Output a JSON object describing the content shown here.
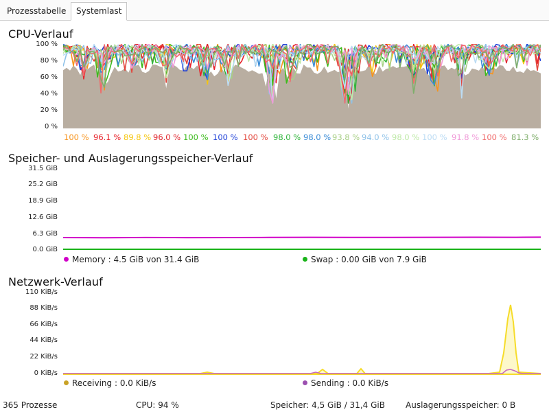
{
  "tabs": [
    {
      "label": "Prozesstabelle",
      "active": false
    },
    {
      "label": "Systemlast",
      "active": true
    }
  ],
  "cpu": {
    "title": "CPU-Verlauf",
    "y_ticks": [
      "100 %",
      "80 %",
      "60 %",
      "40 %",
      "20 %",
      "0 %"
    ],
    "fill_color": "#b9aea1",
    "cores": [
      {
        "value": "100 %",
        "color": "#f7941d"
      },
      {
        "value": "96.1 %",
        "color": "#e8222a"
      },
      {
        "value": "89.8 %",
        "color": "#f6c60f"
      },
      {
        "value": "96.0 %",
        "color": "#e0232b"
      },
      {
        "value": "100 %",
        "color": "#3dbb1d"
      },
      {
        "value": "100 %",
        "color": "#1e40d8"
      },
      {
        "value": "100 %",
        "color": "#e2463c"
      },
      {
        "value": "98.0 %",
        "color": "#2fb53a"
      },
      {
        "value": "98.0 %",
        "color": "#3b8cd6"
      },
      {
        "value": "93.8 %",
        "color": "#a8cf86"
      },
      {
        "value": "94.0 %",
        "color": "#8fc2e8"
      },
      {
        "value": "98.0 %",
        "color": "#bfe9a8"
      },
      {
        "value": "100 %",
        "color": "#bcdcf4"
      },
      {
        "value": "91.8 %",
        "color": "#f09ad8"
      },
      {
        "value": "100 %",
        "color": "#f06a6a"
      },
      {
        "value": "81.3 %",
        "color": "#7fae6b"
      }
    ]
  },
  "memory": {
    "title": "Speicher- und Auslagerungsspeicher-Verlauf",
    "y_ticks": [
      "31.5 GiB",
      "25.2 GiB",
      "18.9 GiB",
      "12.6 GiB",
      "6.3 GiB",
      "0.0 GiB"
    ],
    "legend": [
      {
        "label": "Memory : 4.5 GiB von 31.4 GiB",
        "color": "#d100c8"
      },
      {
        "label": "Swap : 0.00 GiB von 7.9 GiB",
        "color": "#19b319"
      }
    ]
  },
  "network": {
    "title": "Netzwerk-Verlauf",
    "y_ticks": [
      "110 KiB/s",
      "88 KiB/s",
      "66 KiB/s",
      "44 KiB/s",
      "22 KiB/s",
      "0 KiB/s"
    ],
    "legend": [
      {
        "label": "Receiving : 0.0 KiB/s",
        "color": "#c9a227"
      },
      {
        "label": "Sending : 0.0 KiB/s",
        "color": "#9b4fb0"
      }
    ]
  },
  "status": {
    "processes": "365 Prozesse",
    "cpu": "CPU: 94 %",
    "memory": "Speicher: 4,5 GiB / 31,4 GiB",
    "swap": "Auslagerungsspeicher: 0 B"
  }
}
